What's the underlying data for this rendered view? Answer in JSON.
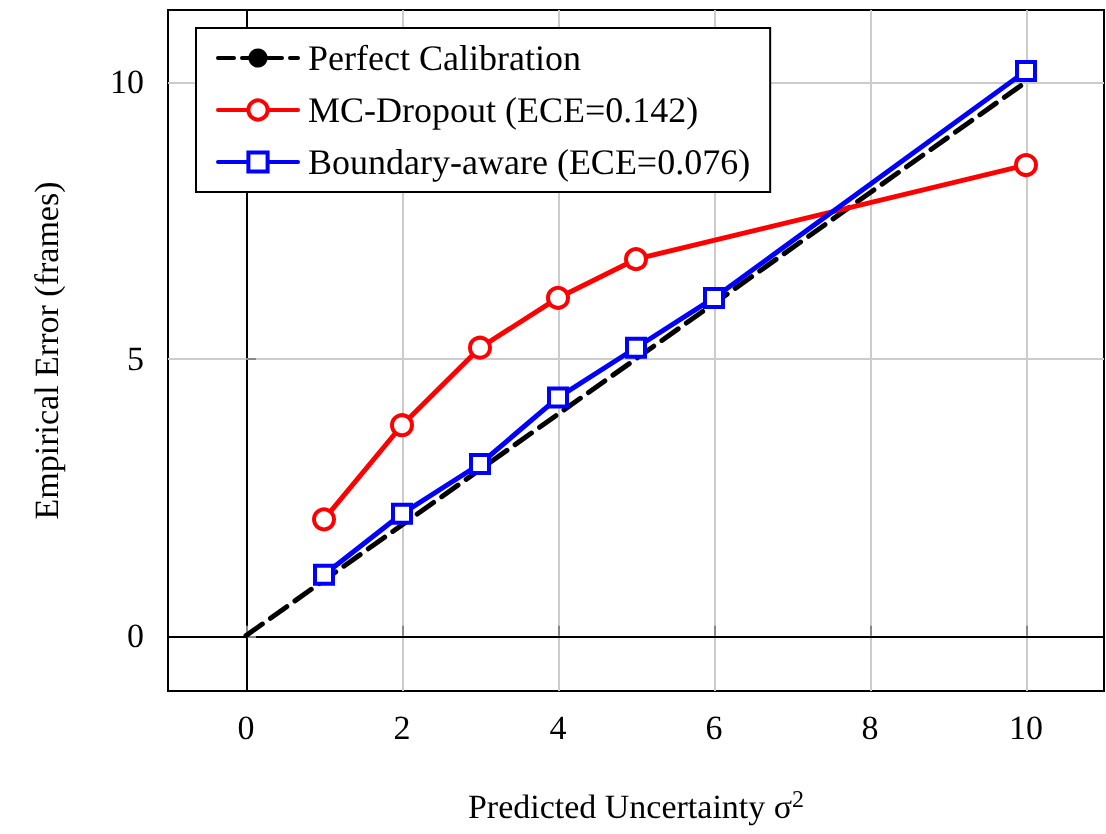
{
  "chart_data": {
    "type": "line",
    "xlabel": "Predicted Uncertainty σ$^{2}$",
    "ylabel": "Empirical Error (frames)",
    "xlim": [
      -1,
      11
    ],
    "xticks": [
      0,
      2,
      4,
      6,
      8,
      10
    ],
    "ylim": [
      -1,
      11.3
    ],
    "yticks": [
      0,
      5,
      10
    ],
    "grid": true,
    "legend": "top left",
    "series": [
      {
        "name": "Perfect Calibration",
        "color": "#000000",
        "x": [
          0,
          10
        ],
        "values": [
          0,
          10
        ],
        "marker": "none",
        "line_style": "dashed"
      },
      {
        "name": "MC-Dropout (ECE=0.142)",
        "color": "#ff0000",
        "x": [
          1,
          2,
          3,
          4,
          5,
          6,
          7,
          8,
          9,
          10
        ],
        "values": [
          2.1,
          3.8,
          5.2,
          6.1,
          6.8,
          null,
          null,
          null,
          null,
          8.5
        ],
        "marker": "circle",
        "line_style": "solid"
      },
      {
        "name": "Boundary-aware (ECE=0.076)",
        "color": "#0000ff",
        "x": [
          1,
          2,
          3,
          4,
          5,
          6,
          7,
          8,
          9,
          10
        ],
        "values": [
          1.1,
          2.2,
          3.1,
          4.3,
          5.2,
          6.1,
          null,
          null,
          null,
          10.2
        ],
        "marker": "square",
        "line_style": "solid"
      }
    ]
  }
}
